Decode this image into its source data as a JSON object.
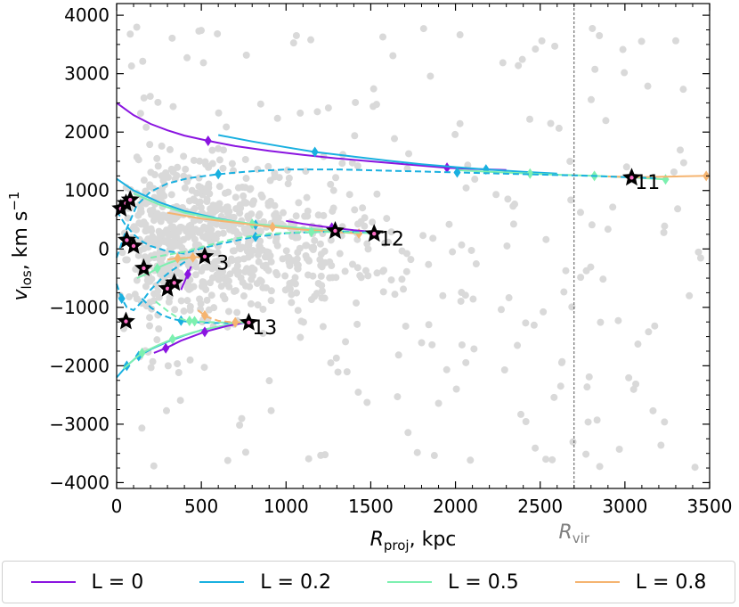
{
  "chart_data": {
    "type": "scatter",
    "xlabel_main": "R",
    "xlabel_sub": "proj",
    "xlabel_unit": ", kpc",
    "ylabel_main": "v",
    "ylabel_sub": "los",
    "ylabel_unit": ", km s",
    "ylabel_exp": "−1",
    "xlim": [
      0,
      3500
    ],
    "ylim": [
      -4100,
      4200
    ],
    "x_ticks": [
      0,
      500,
      1000,
      1500,
      2000,
      2500,
      3000,
      3500
    ],
    "x_tick_labels": [
      "0",
      "500",
      "1000",
      "1500",
      "2000",
      "2500",
      "3000",
      "3500"
    ],
    "y_ticks": [
      -4000,
      -3000,
      -2000,
      -1000,
      0,
      1000,
      2000,
      3000,
      4000
    ],
    "y_tick_labels": [
      "−4000",
      "−3000",
      "−2000",
      "−1000",
      "0",
      "1000",
      "2000",
      "3000",
      "4000"
    ],
    "rvir": {
      "x": 2700,
      "label_main": "R",
      "label_sub": "vir"
    },
    "colors": {
      "L0": "#8a14e0",
      "L02": "#19b0e0",
      "L05": "#7df0b0",
      "L08": "#f5b470",
      "background": "#d9d9d9",
      "star_fill": "#ff6ec7"
    },
    "legend": [
      {
        "label": "L = 0",
        "color": "#8a14e0"
      },
      {
        "label": "L = 0.2",
        "color": "#19b0e0"
      },
      {
        "label": "L = 0.5",
        "color": "#7df0b0"
      },
      {
        "label": "L = 0.8",
        "color": "#f5b470"
      }
    ],
    "annotations": [
      {
        "text": "11",
        "x": 3060,
        "y": 1150
      },
      {
        "text": "12",
        "x": 1550,
        "y": 180
      },
      {
        "text": "3",
        "x": 590,
        "y": -230
      },
      {
        "text": "13",
        "x": 800,
        "y": -1340
      }
    ],
    "stars": [
      {
        "x": 25,
        "y": 690
      },
      {
        "x": 55,
        "y": 780
      },
      {
        "x": 80,
        "y": 840
      },
      {
        "x": 60,
        "y": 150
      },
      {
        "x": 100,
        "y": 50
      },
      {
        "x": 160,
        "y": -330
      },
      {
        "x": 300,
        "y": -680
      },
      {
        "x": 340,
        "y": -580
      },
      {
        "x": 520,
        "y": -130
      },
      {
        "x": 55,
        "y": -1240
      },
      {
        "x": 780,
        "y": -1260
      },
      {
        "x": 1290,
        "y": 310
      },
      {
        "x": 1520,
        "y": 260
      },
      {
        "x": 3040,
        "y": 1220
      }
    ],
    "series": [
      {
        "name": "L = 0 (to 11)",
        "color": "#8a14e0",
        "dashed": false,
        "x": [
          0,
          100,
          200,
          300,
          400,
          540,
          700,
          900,
          1100,
          1300,
          1500,
          1700,
          1950,
          2100,
          2300
        ],
        "y": [
          2500,
          2290,
          2140,
          2030,
          1940,
          1850,
          1760,
          1680,
          1610,
          1550,
          1500,
          1450,
          1390,
          1370,
          1350
        ],
        "markers_x": [
          540,
          1950
        ]
      },
      {
        "name": "L = 0.2 (to 11, upper)",
        "color": "#19b0e0",
        "dashed": false,
        "x": [
          600,
          800,
          1000,
          1170,
          1400,
          1600,
          1800,
          2000,
          2180,
          2400,
          2600
        ],
        "y": [
          1950,
          1840,
          1740,
          1660,
          1580,
          1510,
          1450,
          1400,
          1360,
          1320,
          1290
        ],
        "markers_x": [
          1170,
          2180
        ]
      },
      {
        "name": "L = 0.5 (to 11)",
        "color": "#7df0b0",
        "dashed": false,
        "x": [
          2000,
          2200,
          2440,
          2600,
          2820,
          3000,
          3240
        ],
        "y": [
          1350,
          1320,
          1290,
          1270,
          1250,
          1230,
          1190
        ],
        "markers_x": [
          2440,
          2820,
          3240
        ]
      },
      {
        "name": "L = 0.8 (to 11)",
        "color": "#f5b470",
        "dashed": false,
        "x": [
          2900,
          3100,
          3300,
          3480
        ],
        "y": [
          1240,
          1230,
          1240,
          1250
        ],
        "markers_x": [
          3480
        ]
      },
      {
        "name": "L = 0.2 (to 11, dashed)",
        "color": "#19b0e0",
        "dashed": true,
        "x": [
          0,
          60,
          120,
          200,
          300,
          420,
          600,
          800,
          1000,
          1300,
          1600,
          2000,
          2400,
          2800,
          3200
        ],
        "y": [
          -150,
          350,
          750,
          980,
          1120,
          1210,
          1280,
          1330,
          1360,
          1360,
          1340,
          1310,
          1280,
          1250,
          1210
        ],
        "markers_x": [
          600,
          2010
        ]
      },
      {
        "name": "L = 0.2 (to 12, solid)",
        "color": "#19b0e0",
        "dashed": false,
        "x": [
          0,
          100,
          250,
          400,
          600,
          800,
          1000,
          1200,
          1400
        ],
        "y": [
          1200,
          1000,
          800,
          650,
          520,
          420,
          360,
          320,
          280
        ],
        "markers_x": [
          820
        ]
      },
      {
        "name": "L = 0.5 (to 12, solid)",
        "color": "#7df0b0",
        "dashed": false,
        "x": [
          100,
          250,
          400,
          600,
          800,
          1000,
          1200,
          1400
        ],
        "y": [
          950,
          760,
          620,
          510,
          430,
          380,
          330,
          290
        ],
        "markers_x": [
          800
        ]
      },
      {
        "name": "L = 0.8 (to 12, solid)",
        "color": "#f5b470",
        "dashed": false,
        "x": [
          300,
          500,
          700,
          900,
          1100,
          1300,
          1450
        ],
        "y": [
          620,
          520,
          450,
          380,
          330,
          290,
          260
        ],
        "markers_x": [
          920,
          1430
        ]
      },
      {
        "name": "L = 0 (to 12)",
        "color": "#8a14e0",
        "dashed": false,
        "x": [
          1000,
          1100,
          1200,
          1280,
          1400,
          1520
        ],
        "y": [
          480,
          430,
          390,
          360,
          320,
          290
        ],
        "markers_x": [
          1270
        ]
      },
      {
        "name": "L = 0.2 (to 12, dashed)",
        "color": "#19b0e0",
        "dashed": true,
        "x": [
          0,
          50,
          100,
          150,
          200,
          300,
          400,
          500,
          600,
          800,
          1000,
          1300,
          1500
        ],
        "y": [
          650,
          420,
          250,
          130,
          50,
          -40,
          -80,
          10,
          80,
          200,
          270,
          300,
          280
        ],
        "markers_x": [
          820
        ]
      },
      {
        "name": "L = 0.5 (to 12, dashed)",
        "color": "#7df0b0",
        "dashed": true,
        "x": [
          200,
          300,
          400,
          500,
          700,
          900,
          1100,
          1300,
          1500
        ],
        "y": [
          -150,
          -100,
          -50,
          30,
          180,
          260,
          290,
          290,
          270
        ],
        "markers_x": [
          1150
        ]
      },
      {
        "name": "L = 0.2 (to 3, dashed)",
        "color": "#19b0e0",
        "dashed": true,
        "x": [
          0,
          30,
          60,
          100,
          150,
          200,
          260,
          320,
          420
        ],
        "y": [
          -600,
          -850,
          -1000,
          -1050,
          -900,
          -700,
          -520,
          -380,
          -190
        ],
        "markers_x": [
          30
        ]
      },
      {
        "name": "L = 0.5 (to 3)",
        "color": "#7df0b0",
        "dashed": false,
        "x": [
          120,
          200,
          260,
          300,
          350,
          420
        ],
        "y": [
          -500,
          -400,
          -300,
          -250,
          -200,
          -160
        ],
        "markers_x": [
          240
        ]
      },
      {
        "name": "L = 0.8 (to 3)",
        "color": "#f5b470",
        "dashed": false,
        "x": [
          300,
          360,
          420,
          480,
          540
        ],
        "y": [
          -180,
          -160,
          -150,
          -140,
          -130
        ],
        "markers_x": [
          360,
          450
        ]
      },
      {
        "name": "L = 0 (to 3)",
        "color": "#8a14e0",
        "dashed": false,
        "x": [
          380,
          410,
          440
        ],
        "y": [
          -700,
          -500,
          -300
        ],
        "markers_x": [
          420
        ]
      },
      {
        "name": "L = 0.2 (to 13)",
        "color": "#19b0e0",
        "dashed": false,
        "x": [
          0,
          60,
          120,
          200,
          300,
          400,
          500,
          620,
          760
        ],
        "y": [
          -2200,
          -2000,
          -1850,
          -1720,
          -1590,
          -1480,
          -1390,
          -1320,
          -1260
        ],
        "markers_x": [
          60,
          130
        ]
      },
      {
        "name": "L = 0.5 (to 13)",
        "color": "#7df0b0",
        "dashed": false,
        "x": [
          40,
          100,
          150,
          250,
          350,
          450,
          550,
          660,
          760
        ],
        "y": [
          -2050,
          -1900,
          -1780,
          -1640,
          -1520,
          -1430,
          -1360,
          -1300,
          -1260
        ],
        "markers_x": [
          150,
          330
        ]
      },
      {
        "name": "L = 0 (to 13)",
        "color": "#8a14e0",
        "dashed": false,
        "x": [
          220,
          290,
          380,
          520,
          650,
          760
        ],
        "y": [
          -1780,
          -1700,
          -1570,
          -1420,
          -1320,
          -1260
        ],
        "markers_x": [
          290,
          520
        ]
      },
      {
        "name": "L = 0.2 (to 13, dashed)",
        "color": "#19b0e0",
        "dashed": true,
        "x": [
          150,
          200,
          260,
          330,
          400,
          500,
          620,
          760
        ],
        "y": [
          -850,
          -1000,
          -1120,
          -1200,
          -1240,
          -1260,
          -1270,
          -1260
        ],
        "markers_x": [
          380
        ]
      },
      {
        "name": "L = 0.5 (to 13, dashed)",
        "color": "#7df0b0",
        "dashed": true,
        "x": [
          230,
          300,
          360,
          420,
          520,
          640,
          760
        ],
        "y": [
          -900,
          -1060,
          -1180,
          -1230,
          -1250,
          -1260,
          -1260
        ],
        "markers_x": [
          430,
          460
        ]
      },
      {
        "name": "L = 0.8 (to 13, dashed)",
        "color": "#f5b470",
        "dashed": true,
        "x": [
          480,
          530,
          600,
          680,
          760
        ],
        "y": [
          -1050,
          -1160,
          -1230,
          -1255,
          -1260
        ],
        "markers_x": [
          520,
          700
        ]
      }
    ]
  }
}
